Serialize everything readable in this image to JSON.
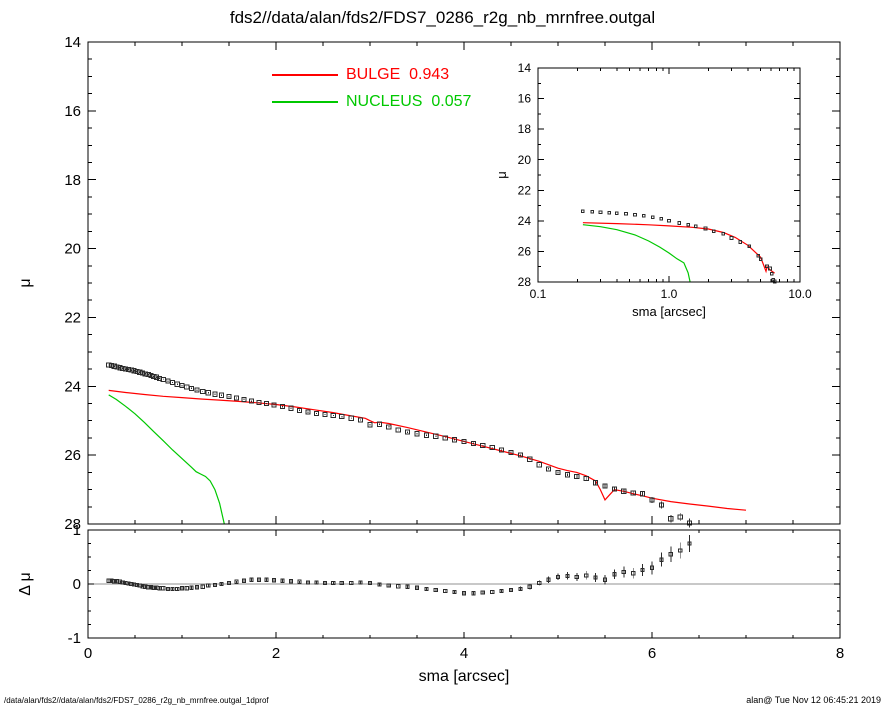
{
  "title": "fds2//data/alan/fds2/FDS7_0286_r2g_nb_mrnfree.outgal",
  "legend": {
    "entries": [
      {
        "label": "BULGE  0.943",
        "color": "#ff0000"
      },
      {
        "label": "NUCLEUS  0.057",
        "color": "#00c800"
      }
    ]
  },
  "footer": {
    "left": "/data/alan/fds2//data/alan/fds2/FDS7_0286_r2g_nb_mrnfree.outgal_1dprof",
    "right": "alan@  Tue Nov 12 06:45:21 2019"
  },
  "chart_data": [
    {
      "id": "main",
      "type": "line",
      "xlabel": "sma [arcsec]",
      "ylabel": "μ",
      "xlim": [
        0,
        8
      ],
      "ylim": [
        14,
        28
      ],
      "y_down": true,
      "xticks": [
        0,
        2,
        4,
        6,
        8
      ],
      "xtick_labels": [
        "0",
        "2",
        "4",
        "6",
        "8"
      ],
      "yticks": [
        14,
        16,
        18,
        20,
        22,
        24,
        26,
        28
      ],
      "ytick_labels": [
        "14",
        "16",
        "18",
        "20",
        "22",
        "24",
        "26",
        "28"
      ],
      "x_minor_step": 0.5,
      "y_minor_step": 0.5,
      "series": [
        {
          "name": "BULGE",
          "style": "line",
          "color": "#ff0000",
          "x": [
            0.22,
            0.4,
            0.6,
            0.8,
            1.0,
            1.2,
            1.4,
            1.6,
            1.8,
            2.0,
            2.2,
            2.4,
            2.6,
            2.8,
            2.95,
            3.0,
            3.05,
            3.1,
            3.2,
            3.4,
            3.6,
            3.8,
            4.0,
            4.2,
            4.4,
            4.6,
            4.8,
            5.0,
            5.1,
            5.2,
            5.3,
            5.4,
            5.45,
            5.5,
            5.55,
            5.6,
            5.7,
            5.8,
            5.9,
            6.0,
            6.2,
            6.4,
            6.6,
            6.8,
            7.0
          ],
          "y": [
            24.12,
            24.18,
            24.24,
            24.29,
            24.33,
            24.37,
            24.4,
            24.44,
            24.48,
            24.53,
            24.6,
            24.68,
            24.76,
            24.86,
            24.93,
            25.0,
            25.06,
            25.04,
            25.08,
            25.2,
            25.33,
            25.46,
            25.6,
            25.74,
            25.88,
            26.02,
            26.18,
            26.38,
            26.45,
            26.5,
            26.6,
            26.75,
            27.0,
            27.3,
            27.15,
            27.0,
            27.05,
            27.12,
            27.18,
            27.25,
            27.35,
            27.42,
            27.48,
            27.55,
            27.6
          ]
        },
        {
          "name": "NUCLEUS",
          "style": "line",
          "color": "#00c800",
          "x": [
            0.22,
            0.3,
            0.4,
            0.5,
            0.6,
            0.7,
            0.8,
            0.9,
            1.0,
            1.1,
            1.15,
            1.2,
            1.25,
            1.3,
            1.35,
            1.4,
            1.45
          ],
          "y": [
            24.25,
            24.38,
            24.58,
            24.8,
            25.05,
            25.32,
            25.58,
            25.85,
            26.1,
            26.35,
            26.48,
            26.55,
            26.62,
            26.75,
            27.0,
            27.4,
            28.0
          ]
        },
        {
          "name": "observed",
          "style": "scatter",
          "color": "#2b2b2b",
          "x": [
            0.22,
            0.25,
            0.28,
            0.31,
            0.34,
            0.37,
            0.4,
            0.43,
            0.46,
            0.49,
            0.52,
            0.55,
            0.58,
            0.61,
            0.64,
            0.67,
            0.7,
            0.73,
            0.76,
            0.8,
            0.85,
            0.9,
            0.95,
            1.0,
            1.05,
            1.1,
            1.16,
            1.22,
            1.28,
            1.35,
            1.42,
            1.5,
            1.58,
            1.66,
            1.74,
            1.82,
            1.9,
            1.98,
            2.07,
            2.16,
            2.25,
            2.34,
            2.43,
            2.52,
            2.61,
            2.7,
            2.8,
            2.9,
            3.0,
            3.1,
            3.2,
            3.3,
            3.4,
            3.5,
            3.6,
            3.7,
            3.8,
            3.9,
            4.0,
            4.1,
            4.2,
            4.3,
            4.4,
            4.5,
            4.6,
            4.7,
            4.8,
            4.9,
            5.0,
            5.1,
            5.2,
            5.3,
            5.4,
            5.5,
            5.6,
            5.7,
            5.8,
            5.9,
            6.0,
            6.1,
            6.2,
            6.3,
            6.4
          ],
          "y": [
            23.38,
            23.4,
            23.42,
            23.44,
            23.46,
            23.48,
            23.5,
            23.51,
            23.53,
            23.55,
            23.57,
            23.59,
            23.61,
            23.64,
            23.66,
            23.69,
            23.72,
            23.74,
            23.77,
            23.8,
            23.85,
            23.89,
            23.94,
            23.98,
            24.02,
            24.06,
            24.11,
            24.15,
            24.19,
            24.23,
            24.26,
            24.3,
            24.34,
            24.38,
            24.43,
            24.47,
            24.5,
            24.54,
            24.59,
            24.64,
            24.7,
            24.75,
            24.79,
            24.82,
            24.85,
            24.88,
            24.93,
            24.98,
            25.12,
            25.1,
            25.18,
            25.27,
            25.33,
            25.38,
            25.42,
            25.45,
            25.5,
            25.55,
            25.6,
            25.66,
            25.72,
            25.78,
            25.85,
            25.92,
            26.0,
            26.12,
            26.28,
            26.4,
            26.5,
            26.57,
            26.62,
            26.68,
            26.8,
            26.9,
            26.98,
            27.05,
            27.1,
            27.12,
            27.3,
            27.45,
            27.85,
            27.8,
            27.97
          ],
          "yerr": [
            0.02,
            0.02,
            0.02,
            0.02,
            0.02,
            0.02,
            0.02,
            0.02,
            0.02,
            0.02,
            0.02,
            0.02,
            0.02,
            0.02,
            0.02,
            0.02,
            0.02,
            0.02,
            0.02,
            0.02,
            0.02,
            0.02,
            0.02,
            0.02,
            0.02,
            0.02,
            0.02,
            0.02,
            0.02,
            0.02,
            0.02,
            0.02,
            0.02,
            0.02,
            0.02,
            0.02,
            0.02,
            0.02,
            0.02,
            0.02,
            0.02,
            0.02,
            0.02,
            0.02,
            0.02,
            0.02,
            0.02,
            0.02,
            0.02,
            0.02,
            0.02,
            0.02,
            0.02,
            0.02,
            0.02,
            0.02,
            0.02,
            0.02,
            0.02,
            0.02,
            0.02,
            0.02,
            0.02,
            0.02,
            0.02,
            0.02,
            0.02,
            0.02,
            0.03,
            0.03,
            0.04,
            0.04,
            0.05,
            0.05,
            0.06,
            0.06,
            0.07,
            0.08,
            0.09,
            0.1,
            0.11,
            0.12,
            0.13
          ]
        }
      ]
    },
    {
      "id": "inset",
      "type": "line",
      "xlabel": "sma [arcsec]",
      "ylabel": "μ",
      "x_scale": "log",
      "xlim": [
        0.1,
        10
      ],
      "ylim": [
        14,
        28
      ],
      "y_down": true,
      "xticks": [
        0.1,
        1,
        10
      ],
      "xtick_labels": [
        "0.1",
        "1.0",
        "10.0"
      ],
      "yticks": [
        14,
        16,
        18,
        20,
        22,
        24,
        26,
        28
      ],
      "ytick_labels": [
        "14",
        "16",
        "18",
        "20",
        "22",
        "24",
        "26",
        "28"
      ],
      "y_minor_step": 1,
      "series": [
        {
          "name": "BULGE",
          "style": "line",
          "color": "#ff0000",
          "x": [
            0.22,
            0.4,
            0.7,
            1.0,
            1.5,
            2.0,
            2.6,
            3.2,
            4.0,
            5.0,
            5.5,
            5.6,
            6.0,
            6.4
          ],
          "y": [
            24.12,
            24.18,
            24.26,
            24.33,
            24.42,
            24.53,
            24.76,
            25.08,
            25.6,
            26.38,
            27.3,
            27.0,
            27.25,
            27.42
          ]
        },
        {
          "name": "NUCLEUS",
          "style": "line",
          "color": "#00c800",
          "x": [
            0.22,
            0.3,
            0.4,
            0.55,
            0.7,
            0.85,
            1.0,
            1.15,
            1.3,
            1.4,
            1.45
          ],
          "y": [
            24.25,
            24.38,
            24.58,
            24.92,
            25.32,
            25.72,
            26.1,
            26.48,
            26.75,
            27.4,
            28.0
          ]
        },
        {
          "name": "observed",
          "style": "scatter",
          "color": "#2b2b2b",
          "x": [
            0.22,
            0.26,
            0.3,
            0.35,
            0.4,
            0.47,
            0.55,
            0.64,
            0.75,
            0.87,
            1.0,
            1.2,
            1.4,
            1.6,
            1.9,
            2.2,
            2.6,
            3.0,
            3.5,
            4.1,
            4.8,
            5.0,
            5.6,
            5.9,
            6.1,
            6.25,
            6.4
          ],
          "y": [
            23.38,
            23.41,
            23.43,
            23.47,
            23.5,
            23.54,
            23.59,
            23.66,
            23.76,
            23.87,
            23.98,
            24.14,
            24.25,
            24.35,
            24.5,
            24.68,
            24.85,
            25.12,
            25.38,
            25.66,
            26.28,
            26.5,
            26.98,
            27.12,
            27.45,
            27.85,
            27.97
          ]
        }
      ]
    },
    {
      "id": "residual",
      "type": "scatter",
      "xlabel": "sma [arcsec]",
      "ylabel": "Δ μ",
      "xlim": [
        0,
        8
      ],
      "ylim": [
        -1,
        1
      ],
      "y_down": false,
      "zero_line": true,
      "xticks": [
        0,
        2,
        4,
        6,
        8
      ],
      "xtick_labels": [
        "0",
        "2",
        "4",
        "6",
        "8"
      ],
      "yticks": [
        -1,
        0,
        1
      ],
      "ytick_labels": [
        "-1",
        "0",
        "1"
      ],
      "x_minor_step": 0.5,
      "y_minor_step": 0.25,
      "series": [
        {
          "name": "residuals",
          "style": "scatter",
          "color": "#2b2b2b",
          "x": [
            0.22,
            0.25,
            0.28,
            0.31,
            0.34,
            0.37,
            0.4,
            0.43,
            0.46,
            0.49,
            0.52,
            0.55,
            0.58,
            0.61,
            0.64,
            0.67,
            0.7,
            0.73,
            0.76,
            0.8,
            0.85,
            0.9,
            0.95,
            1.0,
            1.05,
            1.1,
            1.16,
            1.22,
            1.28,
            1.35,
            1.42,
            1.5,
            1.58,
            1.66,
            1.74,
            1.82,
            1.9,
            1.98,
            2.07,
            2.16,
            2.25,
            2.34,
            2.43,
            2.52,
            2.61,
            2.7,
            2.8,
            2.9,
            3.0,
            3.1,
            3.2,
            3.3,
            3.4,
            3.5,
            3.6,
            3.7,
            3.8,
            3.9,
            4.0,
            4.1,
            4.2,
            4.3,
            4.4,
            4.5,
            4.6,
            4.7,
            4.8,
            4.9,
            5.0,
            5.1,
            5.2,
            5.3,
            5.4,
            5.5,
            5.6,
            5.7,
            5.8,
            5.9,
            6.0,
            6.1,
            6.2,
            6.3,
            6.4
          ],
          "y": [
            0.06,
            0.06,
            0.05,
            0.05,
            0.04,
            0.03,
            0.02,
            0.01,
            0.0,
            -0.01,
            -0.02,
            -0.03,
            -0.04,
            -0.05,
            -0.06,
            -0.06,
            -0.07,
            -0.07,
            -0.08,
            -0.08,
            -0.09,
            -0.09,
            -0.09,
            -0.08,
            -0.08,
            -0.07,
            -0.06,
            -0.05,
            -0.03,
            -0.02,
            0.0,
            0.02,
            0.04,
            0.06,
            0.08,
            0.08,
            0.08,
            0.07,
            0.06,
            0.05,
            0.04,
            0.03,
            0.03,
            0.02,
            0.02,
            0.02,
            0.02,
            0.03,
            0.02,
            -0.01,
            -0.03,
            -0.04,
            -0.05,
            -0.07,
            -0.09,
            -0.11,
            -0.13,
            -0.15,
            -0.17,
            -0.17,
            -0.16,
            -0.15,
            -0.13,
            -0.11,
            -0.09,
            -0.05,
            0.02,
            0.08,
            0.13,
            0.15,
            0.13,
            0.16,
            0.12,
            0.08,
            0.18,
            0.22,
            0.2,
            0.26,
            0.3,
            0.45,
            0.55,
            0.62,
            0.75
          ],
          "yerr": [
            0.02,
            0.02,
            0.02,
            0.02,
            0.02,
            0.02,
            0.02,
            0.02,
            0.02,
            0.02,
            0.02,
            0.02,
            0.02,
            0.02,
            0.02,
            0.02,
            0.02,
            0.02,
            0.02,
            0.02,
            0.02,
            0.02,
            0.02,
            0.02,
            0.02,
            0.02,
            0.02,
            0.02,
            0.02,
            0.02,
            0.02,
            0.02,
            0.02,
            0.02,
            0.02,
            0.02,
            0.02,
            0.02,
            0.02,
            0.02,
            0.02,
            0.02,
            0.02,
            0.02,
            0.02,
            0.02,
            0.02,
            0.02,
            0.02,
            0.02,
            0.02,
            0.02,
            0.02,
            0.02,
            0.02,
            0.02,
            0.02,
            0.02,
            0.02,
            0.02,
            0.02,
            0.02,
            0.02,
            0.02,
            0.04,
            0.05,
            0.05,
            0.06,
            0.06,
            0.07,
            0.07,
            0.08,
            0.08,
            0.09,
            0.09,
            0.1,
            0.1,
            0.11,
            0.12,
            0.13,
            0.14,
            0.15,
            0.16
          ]
        }
      ]
    }
  ]
}
